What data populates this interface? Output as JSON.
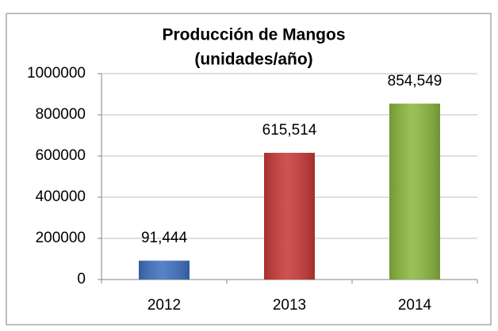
{
  "chart_data": {
    "type": "bar",
    "title": [
      "Producción de Mangos",
      "(unidades/año)"
    ],
    "categories": [
      "2012",
      "2013",
      "2014"
    ],
    "series": [
      {
        "name": "Producción",
        "values": [
          91444,
          615514,
          854549
        ],
        "value_labels": [
          "91,444",
          "615,514",
          "854,549"
        ],
        "colors": [
          "#3f72c0",
          "#c83a38",
          "#8cb83f"
        ]
      }
    ],
    "ylim": [
      0,
      1000000
    ],
    "yticks": [
      0,
      200000,
      400000,
      600000,
      800000,
      1000000
    ],
    "grid": true
  }
}
